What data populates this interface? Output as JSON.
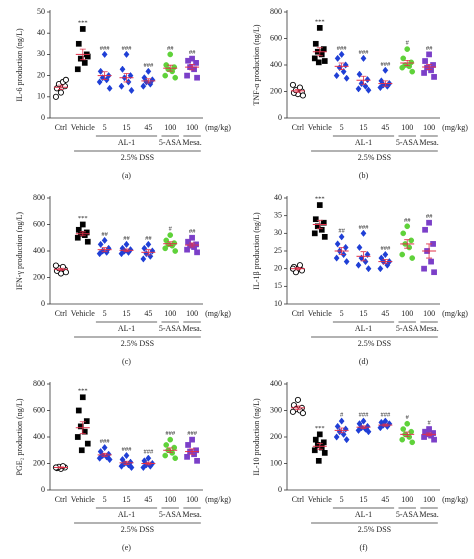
{
  "style": {
    "colors": [
      "#ffffff",
      "#000000",
      "#1f3fd6",
      "#1f3fd6",
      "#1f3fd6",
      "#5fd23a",
      "#7b3fc8"
    ],
    "markers": [
      "circle",
      "square",
      "diamond",
      "diamond",
      "diamond",
      "circle",
      "square"
    ],
    "mean_color": "#e0304a"
  },
  "chart_data": [
    {
      "type": "dot",
      "ylabel": "IL-6 production (ng/L)",
      "panel": "(a)",
      "categories": [
        "Ctrl",
        "Vehicle",
        "5",
        "15",
        "45",
        "100",
        "100"
      ],
      "unit": "(mg/kg)",
      "group_labels": [
        "AL-1",
        "5-ASA",
        "Mesa."
      ],
      "dss_label": "2.5% DSS",
      "ylim": [
        0,
        50
      ],
      "yticks": [
        0,
        10,
        20,
        30,
        40,
        50
      ],
      "points": [
        [
          12,
          14,
          15,
          16,
          17,
          10,
          18
        ],
        [
          42,
          35,
          30,
          28,
          26,
          23,
          29
        ],
        [
          30,
          22,
          20,
          19,
          18,
          17,
          14
        ],
        [
          30,
          23,
          20,
          19,
          17,
          15,
          13
        ],
        [
          22,
          19,
          18,
          17,
          16,
          15
        ],
        [
          30,
          25,
          24,
          23,
          22,
          20,
          19
        ],
        [
          28,
          27,
          26,
          24,
          23,
          20,
          19
        ]
      ],
      "means": [
        14.5,
        30,
        20,
        19,
        17.5,
        23.5,
        24
      ],
      "sems": [
        1,
        2.5,
        1.8,
        2,
        1,
        1.4,
        1.3
      ],
      "significance": [
        null,
        "***",
        "###",
        "###",
        "###",
        "##",
        "##"
      ]
    },
    {
      "type": "dot",
      "ylabel": "TNF-α production (ng/L)",
      "panel": "(b)",
      "categories": [
        "Ctrl",
        "Vehicle",
        "5",
        "15",
        "45",
        "100",
        "100"
      ],
      "unit": "(mg/kg)",
      "group_labels": [
        "AL-1",
        "5-ASA",
        "Mesa."
      ],
      "dss_label": "2.5% DSS",
      "ylim": [
        0,
        800
      ],
      "yticks": [
        0,
        200,
        400,
        600,
        800
      ],
      "points": [
        [
          180,
          190,
          200,
          210,
          230,
          250,
          170
        ],
        [
          680,
          560,
          520,
          500,
          480,
          450,
          430,
          420
        ],
        [
          480,
          450,
          400,
          380,
          350,
          320,
          300
        ],
        [
          450,
          330,
          290,
          260,
          240,
          220,
          210
        ],
        [
          360,
          280,
          260,
          250,
          240,
          230
        ],
        [
          520,
          450,
          420,
          400,
          390,
          380,
          350
        ],
        [
          480,
          430,
          400,
          380,
          360,
          340,
          310
        ]
      ],
      "means": [
        205,
        500,
        390,
        285,
        260,
        415,
        385
      ],
      "sems": [
        10,
        30,
        25,
        30,
        20,
        20,
        20
      ],
      "significance": [
        null,
        "***",
        "###",
        "###",
        "###",
        "#",
        "##"
      ]
    },
    {
      "type": "dot",
      "ylabel": "IFN-γ production (ng/L)",
      "panel": "(c)",
      "categories": [
        "Ctrl",
        "Vehicle",
        "5",
        "15",
        "45",
        "100",
        "100"
      ],
      "unit": "(mg/kg)",
      "group_labels": [
        "AL-1",
        "5-ASA",
        "Mesa."
      ],
      "dss_label": "2.5% DSS",
      "ylim": [
        0,
        800
      ],
      "yticks": [
        0,
        200,
        400,
        600,
        800
      ],
      "points": [
        [
          230,
          250,
          260,
          270,
          280,
          290,
          240
        ],
        [
          600,
          560,
          540,
          530,
          520,
          500,
          470
        ],
        [
          480,
          450,
          420,
          400,
          390,
          380
        ],
        [
          450,
          420,
          410,
          400,
          390,
          380
        ],
        [
          450,
          420,
          400,
          380,
          360,
          340
        ],
        [
          520,
          480,
          460,
          450,
          440,
          420,
          400
        ],
        [
          500,
          470,
          450,
          440,
          430,
          410,
          390
        ]
      ],
      "means": [
        262,
        530,
        410,
        405,
        390,
        455,
        445
      ],
      "sems": [
        8,
        15,
        15,
        10,
        20,
        15,
        15
      ],
      "significance": [
        null,
        "***",
        "##",
        "##",
        "##",
        "#",
        "##"
      ]
    },
    {
      "type": "dot",
      "ylabel": "IL-1β production (ng/L)",
      "panel": "(d)",
      "categories": [
        "Ctrl",
        "Vehicle",
        "5",
        "15",
        "45",
        "100",
        "100"
      ],
      "unit": "(mg/kg)",
      "group_labels": [
        "AL-1",
        "5-ASA",
        "Mesa."
      ],
      "dss_label": "2.5% DSS",
      "ylim": [
        10,
        40
      ],
      "yticks": [
        10,
        15,
        20,
        25,
        30,
        35,
        40
      ],
      "points": [
        [
          20,
          20.5,
          19.5,
          19,
          21,
          20
        ],
        [
          38,
          34,
          33,
          32,
          31,
          30,
          29
        ],
        [
          29,
          27,
          26,
          25,
          24,
          23,
          22
        ],
        [
          30,
          26,
          24,
          23,
          22,
          21,
          20
        ],
        [
          24,
          23,
          22,
          22,
          21,
          20
        ],
        [
          32,
          30,
          28,
          27,
          26,
          24,
          23
        ],
        [
          33,
          31,
          27,
          25,
          22,
          20,
          19
        ]
      ],
      "means": [
        20,
        32.5,
        25,
        23.5,
        22,
        27,
        25
      ],
      "sems": [
        0.3,
        1.2,
        1,
        1.3,
        0.6,
        1.2,
        2
      ],
      "significance": [
        null,
        "***",
        "##",
        "###",
        "###",
        "##",
        "##"
      ]
    },
    {
      "type": "dot",
      "ylabel": "PGE₂ production (ng/L)",
      "panel": "(e)",
      "categories": [
        "Ctrl",
        "Vehicle",
        "5",
        "15",
        "45",
        "100",
        "100"
      ],
      "unit": "(mg/kg)",
      "group_labels": [
        "AL-1",
        "5-ASA",
        "Mesa."
      ],
      "dss_label": "2.5% DSS",
      "ylim": [
        0,
        800
      ],
      "yticks": [
        0,
        200,
        400,
        600,
        800
      ],
      "points": [
        [
          160,
          165,
          170,
          175,
          180,
          170
        ],
        [
          700,
          600,
          520,
          480,
          440,
          400,
          350,
          300
        ],
        [
          320,
          290,
          270,
          260,
          250,
          240,
          230
        ],
        [
          260,
          230,
          210,
          200,
          190,
          180,
          170
        ],
        [
          240,
          220,
          200,
          190,
          180,
          170
        ],
        [
          380,
          340,
          320,
          300,
          280,
          260,
          240
        ],
        [
          380,
          340,
          300,
          290,
          270,
          250,
          220
        ]
      ],
      "means": [
        170,
        470,
        265,
        205,
        200,
        300,
        290
      ],
      "sems": [
        4,
        45,
        12,
        12,
        10,
        18,
        20
      ],
      "significance": [
        null,
        "***",
        "###",
        "###",
        "###",
        "###",
        "###"
      ]
    },
    {
      "type": "dot",
      "ylabel": "IL-10 production (ng/L)",
      "panel": "(f)",
      "categories": [
        "Ctrl",
        "Vehicle",
        "5",
        "15",
        "45",
        "100",
        "100"
      ],
      "unit": "(mg/kg)",
      "group_labels": [
        "AL-1",
        "5-ASA",
        "Mesa."
      ],
      "dss_label": "2.5% DSS",
      "ylim": [
        0,
        400
      ],
      "yticks": [
        0,
        100,
        200,
        300,
        400
      ],
      "points": [
        [
          340,
          320,
          310,
          305,
          300,
          295,
          290
        ],
        [
          210,
          190,
          180,
          170,
          160,
          150,
          140,
          110
        ],
        [
          260,
          240,
          230,
          220,
          210,
          200,
          190
        ],
        [
          260,
          250,
          240,
          235,
          230,
          225,
          220
        ],
        [
          260,
          255,
          250,
          245,
          240,
          235
        ],
        [
          250,
          230,
          220,
          210,
          200,
          190,
          180
        ],
        [
          230,
          220,
          215,
          210,
          205,
          200,
          190
        ]
      ],
      "means": [
        310,
        165,
        225,
        237,
        245,
        210,
        210
      ],
      "sems": [
        7,
        11,
        9,
        5,
        4,
        9,
        5
      ],
      "significance": [
        null,
        "***",
        "#",
        "###",
        "###",
        "#",
        "#"
      ]
    }
  ]
}
